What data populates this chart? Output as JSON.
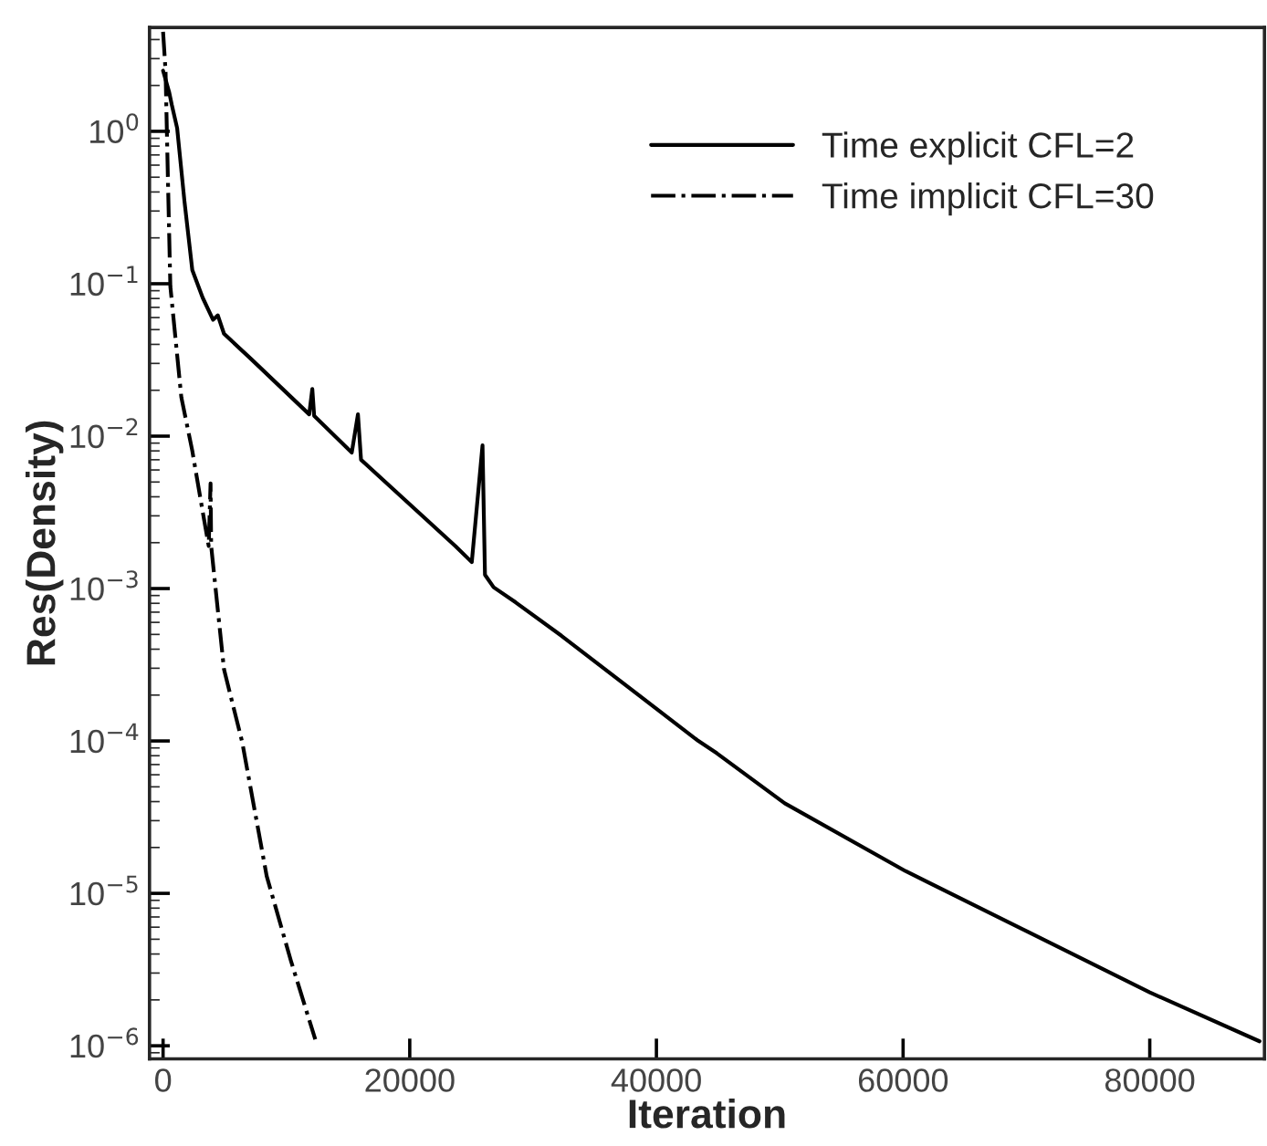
{
  "chart_data": {
    "type": "line",
    "xlabel": "Iteration",
    "ylabel": "Res(Density)",
    "log": "y",
    "xlim": [
      -1100,
      89300
    ],
    "ylim": [
      8.2e-07,
      4.8
    ],
    "xticks": [
      0,
      20000,
      40000,
      60000,
      80000
    ],
    "yticks": [
      {
        "value": 1e-06,
        "label": "10$^{−6}$"
      },
      {
        "value": 1e-05,
        "label": "10$^{−5}$"
      },
      {
        "value": 0.0001,
        "label": "10$^{−4}$"
      },
      {
        "value": 0.001,
        "label": "10$^{−3}$"
      },
      {
        "value": 0.01,
        "label": "10$^{−2}$"
      },
      {
        "value": 0.1,
        "label": "10$^{−1}$"
      },
      {
        "value": 1,
        "label": "10$^{0}$"
      }
    ],
    "grid": false,
    "legend": "top right",
    "series": [
      {
        "name": "Time explicit CFL=2",
        "color": "#000000",
        "line_style": "solid",
        "x": [
          0,
          500,
          700,
          1140,
          1730,
          2370,
          3210,
          4050,
          4440,
          4940,
          7150,
          11850,
          12100,
          12250,
          15300,
          15800,
          16050,
          23700,
          25030,
          25900,
          26100,
          26800,
          28600,
          32300,
          43400,
          44900,
          50400,
          60200,
          70100,
          80000,
          88900
        ],
        "values": [
          2.5,
          1.8,
          1.5,
          1.05,
          0.35,
          0.123,
          0.081,
          0.058,
          0.062,
          0.047,
          0.032,
          0.0139,
          0.0204,
          0.0136,
          0.0078,
          0.0139,
          0.007,
          0.0019,
          0.00149,
          0.0087,
          0.00123,
          0.00102,
          0.00081,
          0.00049,
          0.0001,
          8.3e-05,
          3.9e-05,
          1.4e-05,
          5.6e-06,
          2.24e-06,
          1.07e-06
        ]
      },
      {
        "name": "Time implicit CFL=30",
        "color": "#000000",
        "line_style": "dashdot",
        "x": [
          0,
          200,
          400,
          590,
          1480,
          2370,
          3210,
          3700,
          3850,
          3900,
          4940,
          6420,
          8400,
          10370,
          12340
        ],
        "values": [
          4.5,
          2.5,
          0.46,
          0.096,
          0.018,
          0.008,
          0.0032,
          0.0019,
          0.0049,
          0.0019,
          0.000295,
          9.8e-05,
          1.3e-05,
          3.6e-06,
          1.1e-06
        ]
      }
    ]
  }
}
